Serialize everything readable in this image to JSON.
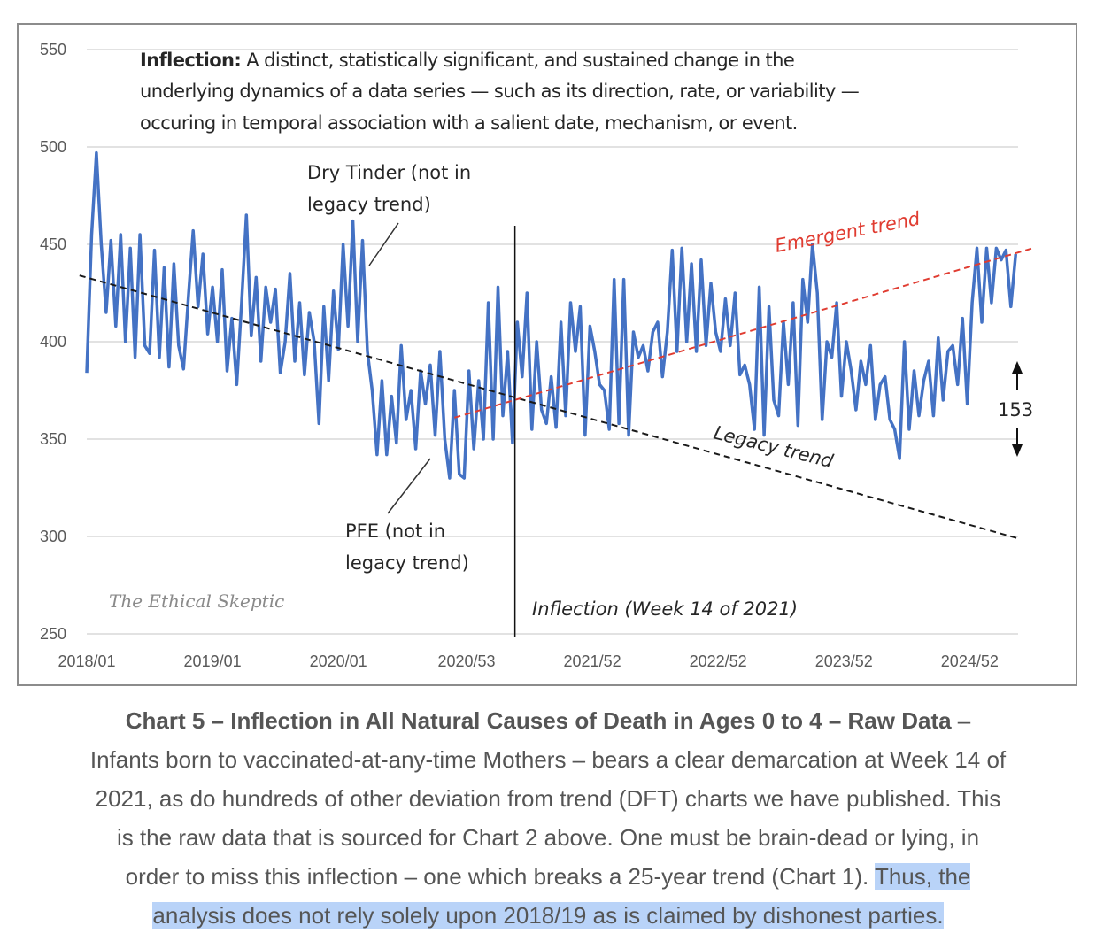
{
  "chart_data": {
    "type": "line",
    "title": "",
    "xlabel": "",
    "ylabel": "",
    "ylim": [
      250,
      550
    ],
    "yticks": [
      "250",
      "300",
      "350",
      "400",
      "450",
      "500",
      "550"
    ],
    "xticks": [
      "2018/01",
      "2019/01",
      "2020/01",
      "2020/53",
      "2021/52",
      "2022/52",
      "2023/52",
      "2024/52"
    ],
    "grid": "horizontal",
    "x_unit": "week index from 2018/01",
    "x_range": [
      0,
      385
    ],
    "series": [
      {
        "name": "All Natural Causes of Death Ages 0-4 (weekly)",
        "color": "#4472c4",
        "keypoints": [
          [
            0,
            384
          ],
          [
            2,
            455
          ],
          [
            4,
            497
          ],
          [
            6,
            450
          ],
          [
            8,
            415
          ],
          [
            10,
            452
          ],
          [
            12,
            408
          ],
          [
            14,
            455
          ],
          [
            16,
            400
          ],
          [
            18,
            448
          ],
          [
            20,
            392
          ],
          [
            22,
            455
          ],
          [
            24,
            398
          ],
          [
            26,
            394
          ],
          [
            28,
            447
          ],
          [
            30,
            392
          ],
          [
            32,
            438
          ],
          [
            34,
            387
          ],
          [
            36,
            440
          ],
          [
            38,
            398
          ],
          [
            40,
            386
          ],
          [
            42,
            423
          ],
          [
            44,
            457
          ],
          [
            46,
            418
          ],
          [
            48,
            445
          ],
          [
            50,
            404
          ],
          [
            52,
            428
          ],
          [
            54,
            400
          ],
          [
            56,
            437
          ],
          [
            58,
            385
          ],
          [
            60,
            412
          ],
          [
            62,
            378
          ],
          [
            64,
            420
          ],
          [
            66,
            465
          ],
          [
            68,
            403
          ],
          [
            70,
            433
          ],
          [
            72,
            390
          ],
          [
            74,
            428
          ],
          [
            76,
            410
          ],
          [
            78,
            427
          ],
          [
            80,
            384
          ],
          [
            82,
            400
          ],
          [
            84,
            435
          ],
          [
            86,
            390
          ],
          [
            88,
            420
          ],
          [
            90,
            383
          ],
          [
            92,
            415
          ],
          [
            94,
            400
          ],
          [
            96,
            358
          ],
          [
            98,
            418
          ],
          [
            100,
            380
          ],
          [
            102,
            426
          ],
          [
            104,
            396
          ],
          [
            106,
            450
          ],
          [
            108,
            408
          ],
          [
            110,
            462
          ],
          [
            112,
            400
          ],
          [
            114,
            452
          ],
          [
            116,
            395
          ],
          [
            118,
            375
          ],
          [
            120,
            342
          ],
          [
            122,
            380
          ],
          [
            124,
            342
          ],
          [
            126,
            372
          ],
          [
            128,
            348
          ],
          [
            130,
            398
          ],
          [
            132,
            360
          ],
          [
            134,
            375
          ],
          [
            136,
            345
          ],
          [
            138,
            385
          ],
          [
            140,
            368
          ],
          [
            142,
            388
          ],
          [
            144,
            352
          ],
          [
            146,
            395
          ],
          [
            148,
            350
          ],
          [
            150,
            330
          ],
          [
            152,
            375
          ],
          [
            154,
            332
          ],
          [
            156,
            330
          ],
          [
            158,
            385
          ],
          [
            160,
            345
          ],
          [
            162,
            380
          ],
          [
            164,
            350
          ],
          [
            166,
            420
          ],
          [
            168,
            350
          ],
          [
            170,
            428
          ],
          [
            172,
            362
          ],
          [
            174,
            395
          ],
          [
            176,
            348
          ],
          [
            178,
            410
          ],
          [
            180,
            382
          ],
          [
            182,
            425
          ],
          [
            184,
            355
          ],
          [
            186,
            400
          ],
          [
            188,
            365
          ],
          [
            190,
            358
          ],
          [
            192,
            382
          ],
          [
            194,
            356
          ],
          [
            196,
            410
          ],
          [
            198,
            362
          ],
          [
            200,
            420
          ],
          [
            202,
            395
          ],
          [
            204,
            418
          ],
          [
            206,
            352
          ],
          [
            208,
            408
          ],
          [
            210,
            395
          ],
          [
            212,
            378
          ],
          [
            214,
            375
          ],
          [
            216,
            355
          ],
          [
            218,
            432
          ],
          [
            220,
            358
          ],
          [
            222,
            432
          ],
          [
            224,
            352
          ],
          [
            226,
            405
          ],
          [
            228,
            392
          ],
          [
            230,
            398
          ],
          [
            232,
            385
          ],
          [
            234,
            405
          ],
          [
            236,
            410
          ],
          [
            238,
            382
          ],
          [
            240,
            405
          ],
          [
            242,
            447
          ],
          [
            244,
            395
          ],
          [
            246,
            448
          ],
          [
            248,
            400
          ],
          [
            250,
            440
          ],
          [
            252,
            395
          ],
          [
            254,
            442
          ],
          [
            256,
            398
          ],
          [
            258,
            430
          ],
          [
            260,
            405
          ],
          [
            262,
            395
          ],
          [
            264,
            422
          ],
          [
            266,
            398
          ],
          [
            268,
            425
          ],
          [
            270,
            383
          ],
          [
            272,
            388
          ],
          [
            274,
            378
          ],
          [
            276,
            355
          ],
          [
            278,
            428
          ],
          [
            280,
            352
          ],
          [
            282,
            418
          ],
          [
            284,
            370
          ],
          [
            286,
            362
          ],
          [
            288,
            410
          ],
          [
            290,
            378
          ],
          [
            292,
            420
          ],
          [
            294,
            357
          ],
          [
            296,
            432
          ],
          [
            298,
            410
          ],
          [
            300,
            450
          ],
          [
            302,
            425
          ],
          [
            304,
            360
          ],
          [
            306,
            400
          ],
          [
            308,
            392
          ],
          [
            310,
            420
          ],
          [
            312,
            372
          ],
          [
            314,
            400
          ],
          [
            316,
            385
          ],
          [
            318,
            365
          ],
          [
            320,
            390
          ],
          [
            322,
            378
          ],
          [
            324,
            398
          ],
          [
            326,
            360
          ],
          [
            328,
            378
          ],
          [
            330,
            382
          ],
          [
            332,
            360
          ],
          [
            334,
            355
          ],
          [
            336,
            340
          ],
          [
            338,
            400
          ],
          [
            340,
            355
          ],
          [
            342,
            385
          ],
          [
            344,
            362
          ],
          [
            346,
            380
          ],
          [
            348,
            390
          ],
          [
            350,
            362
          ],
          [
            352,
            402
          ],
          [
            354,
            370
          ],
          [
            356,
            395
          ],
          [
            358,
            398
          ],
          [
            360,
            378
          ],
          [
            362,
            412
          ],
          [
            364,
            368
          ],
          [
            366,
            420
          ],
          [
            368,
            448
          ],
          [
            370,
            410
          ],
          [
            372,
            448
          ],
          [
            374,
            420
          ],
          [
            376,
            448
          ],
          [
            378,
            442
          ],
          [
            380,
            447
          ],
          [
            382,
            418
          ],
          [
            384,
            445
          ]
        ]
      },
      {
        "name": "Legacy trend",
        "color": "#1a1a1a",
        "style": "dashed",
        "points": [
          [
            -3,
            434
          ],
          [
            385,
            299
          ]
        ]
      },
      {
        "name": "Emergent trend",
        "color": "#e03c31",
        "style": "dashed",
        "points": [
          [
            152,
            361
          ],
          [
            391,
            448
          ]
        ]
      }
    ],
    "inflection": {
      "label": "Inflection (Week 14 of 2021)",
      "x": 177
    },
    "annotations": {
      "definition_term": "Inflection:",
      "definition_lines": [
        " A distinct, statistically significant, and sustained change in the",
        "underlying dynamics of a data series — such as its direction, rate, or variability —",
        "occuring in temporal association with a salient date, mechanism, or event."
      ],
      "dry_tinder": [
        "Dry Tinder (not in",
        "legacy trend)"
      ],
      "pfe": [
        "PFE (not in",
        "legacy trend)"
      ],
      "emergent_label": "Emergent trend",
      "legacy_label": "Legacy trend",
      "gap_value": "153",
      "watermark": "The Ethical Skeptic"
    }
  },
  "caption": {
    "bold": "Chart 5 – Inflection in All Natural Causes of Death in Ages 0 to 4 – Raw Data",
    "line1_tail": " –",
    "line2": "Infants born to vaccinated-at-any-time Mothers – bears a clear demarcation at Week 14 of",
    "line3": "2021, as do hundreds of other deviation from trend (DFT) charts we have published. This",
    "line4": "is the raw data that is sourced for Chart 2 above. One must be brain-dead or lying, in",
    "line5_plain": "order to miss this inflection – one which breaks a 25-year trend (Chart 1). ",
    "line5_highlight": "Thus, the",
    "line6_highlight": "analysis does not rely solely upon 2018/19 as is claimed by dishonest parties."
  },
  "colors": {
    "series": "#4472c4",
    "emergent": "#e03c31",
    "highlight": "#b9d3f8",
    "caption_text": "#555555"
  }
}
